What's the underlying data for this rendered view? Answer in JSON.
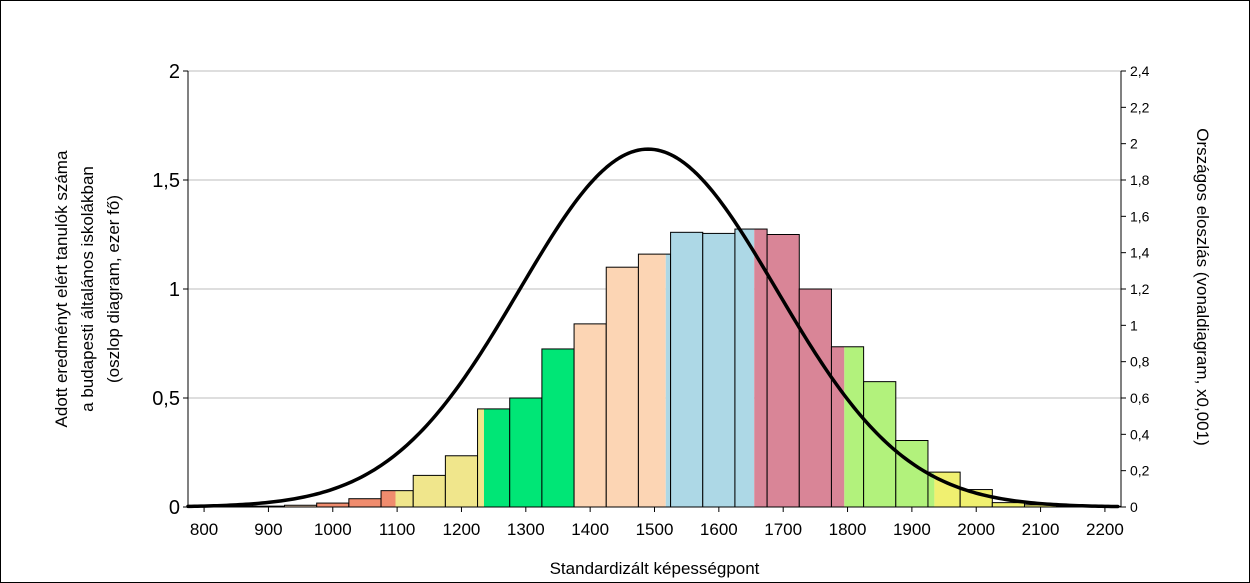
{
  "chart_data": {
    "type": "bar",
    "xlabel": "Standardizált képességpont",
    "ylabel_lines": [
      "Adott eredményt elért tanulók száma",
      "a budapesti általános iskolákban",
      "(oszlop diagram, ezer fő)"
    ],
    "y2label": "Országos eloszlás (vonaldiagram, x0,001)",
    "xlim": [
      775,
      2225
    ],
    "ylim": [
      0,
      2
    ],
    "y2lim": [
      0,
      2.4
    ],
    "x_ticks": [
      800,
      900,
      1000,
      1100,
      1200,
      1300,
      1400,
      1500,
      1600,
      1700,
      1800,
      1900,
      2000,
      2100,
      2200
    ],
    "y_ticks": [
      0,
      0.5,
      1,
      1.5,
      2
    ],
    "y_tick_labels": [
      "0",
      "0,5",
      "1",
      "1,5",
      "2"
    ],
    "y2_ticks": [
      0,
      0.2,
      0.4,
      0.6,
      0.8,
      1,
      1.2,
      1.4,
      1.6,
      1.8,
      2,
      2.2,
      2.4
    ],
    "y2_tick_labels": [
      "0",
      "0,2",
      "0,4",
      "0,6",
      "0,8",
      "1",
      "1,2",
      "1,4",
      "1,6",
      "1,8",
      "2",
      "2,2",
      "2,4"
    ],
    "grid": "horizontal",
    "bar_width": 50,
    "bars": [
      {
        "x": 800,
        "value": 0.003,
        "colors": [
          "#f5d5b8"
        ]
      },
      {
        "x": 850,
        "value": 0.004,
        "colors": [
          "#f5d5b8"
        ]
      },
      {
        "x": 900,
        "value": 0.004,
        "colors": [
          "#f5d5b8"
        ]
      },
      {
        "x": 950,
        "value": 0.008,
        "colors": [
          "#f5d5b8"
        ]
      },
      {
        "x": 1000,
        "value": 0.018,
        "colors": [
          "#f08c6e"
        ]
      },
      {
        "x": 1050,
        "value": 0.038,
        "colors": [
          "#f08c6e"
        ]
      },
      {
        "x": 1100,
        "value": 0.075,
        "colors": [
          "#f08c6e",
          "#f0e68c"
        ],
        "split": 0.45
      },
      {
        "x": 1150,
        "value": 0.145,
        "colors": [
          "#f0e68c"
        ]
      },
      {
        "x": 1200,
        "value": 0.235,
        "colors": [
          "#f0e68c"
        ]
      },
      {
        "x": 1250,
        "value": 0.45,
        "colors": [
          "#f0e68c",
          "#00e676"
        ],
        "split": 0.2
      },
      {
        "x": 1300,
        "value": 0.5,
        "colors": [
          "#00e676"
        ]
      },
      {
        "x": 1350,
        "value": 0.725,
        "colors": [
          "#00e676"
        ]
      },
      {
        "x": 1400,
        "value": 0.84,
        "colors": [
          "#fcd5b4"
        ]
      },
      {
        "x": 1450,
        "value": 1.1,
        "colors": [
          "#fcd5b4"
        ]
      },
      {
        "x": 1500,
        "value": 1.16,
        "colors": [
          "#fcd5b4",
          "#add8e6"
        ],
        "split": 0.85
      },
      {
        "x": 1550,
        "value": 1.26,
        "colors": [
          "#add8e6"
        ]
      },
      {
        "x": 1600,
        "value": 1.255,
        "colors": [
          "#add8e6"
        ]
      },
      {
        "x": 1650,
        "value": 1.275,
        "colors": [
          "#add8e6",
          "#d98597"
        ],
        "split": 0.6
      },
      {
        "x": 1700,
        "value": 1.25,
        "colors": [
          "#d98597"
        ]
      },
      {
        "x": 1750,
        "value": 1.0,
        "colors": [
          "#d98597"
        ]
      },
      {
        "x": 1800,
        "value": 0.735,
        "colors": [
          "#d98597",
          "#b2f27c"
        ],
        "split": 0.4
      },
      {
        "x": 1850,
        "value": 0.575,
        "colors": [
          "#b2f27c"
        ]
      },
      {
        "x": 1900,
        "value": 0.305,
        "colors": [
          "#b2f27c"
        ]
      },
      {
        "x": 1950,
        "value": 0.16,
        "colors": [
          "#b2f27c",
          "#f0f070"
        ],
        "split": 0.2
      },
      {
        "x": 2000,
        "value": 0.08,
        "colors": [
          "#f0f070"
        ]
      },
      {
        "x": 2050,
        "value": 0.02,
        "colors": [
          "#f0f070"
        ]
      },
      {
        "x": 2100,
        "value": 0.01,
        "colors": [
          "#f0f070"
        ]
      },
      {
        "x": 2150,
        "value": 0.005,
        "colors": [
          "#f0f070"
        ]
      },
      {
        "x": 2200,
        "value": 0.003,
        "colors": [
          "#f0f070"
        ]
      }
    ],
    "line": {
      "axis": "right",
      "distribution": "normal",
      "mean": 1490,
      "peak": 1.97,
      "sd": 200,
      "x_range": [
        775,
        2220
      ],
      "color": "#000000"
    }
  }
}
